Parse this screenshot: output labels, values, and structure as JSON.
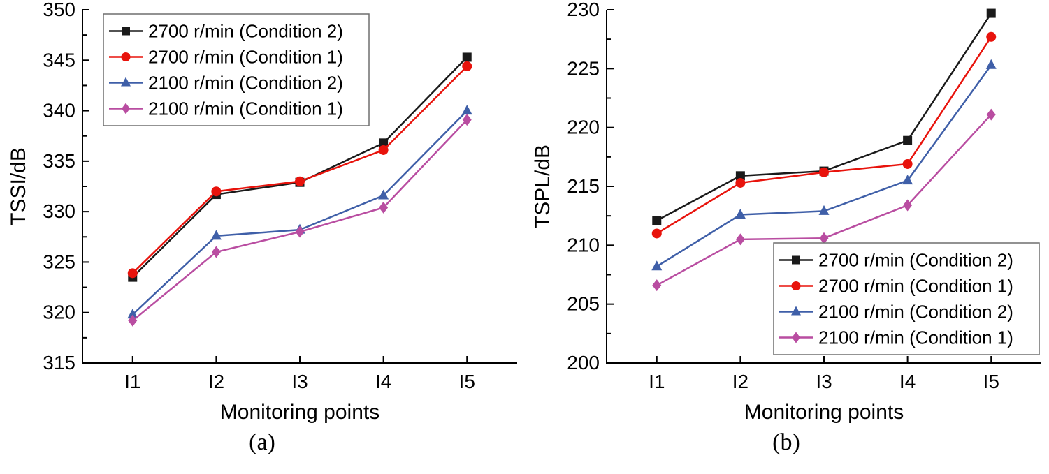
{
  "figure": {
    "background": "#ffffff",
    "text_color": "#000000"
  },
  "chart_data": [
    {
      "type": "line",
      "caption": "(a)",
      "title": "",
      "xlabel": "Monitoring points",
      "ylabel": "TSSI/dB",
      "categories": [
        "I1",
        "I2",
        "I3",
        "I4",
        "I5"
      ],
      "ylim": [
        315,
        350
      ],
      "ytick_step": 5,
      "grid": false,
      "legend_position": "top-left",
      "series": [
        {
          "name": "2700 r/min (Condition 2)",
          "marker": "square",
          "color": "#1a1a1a",
          "values": [
            323.5,
            331.7,
            332.9,
            336.8,
            345.3
          ]
        },
        {
          "name": "2700 r/min (Condition 1)",
          "marker": "circle",
          "color": "#e8130c",
          "values": [
            323.9,
            332.0,
            333.0,
            336.1,
            344.4
          ]
        },
        {
          "name": "2100 r/min (Condition 2)",
          "marker": "triangle",
          "color": "#3f5fa8",
          "values": [
            319.8,
            327.6,
            328.2,
            331.6,
            340.0
          ]
        },
        {
          "name": "2100 r/min (Condition 1)",
          "marker": "diamond",
          "color": "#b94da1",
          "values": [
            319.2,
            326.0,
            328.0,
            330.4,
            339.1
          ]
        }
      ]
    },
    {
      "type": "line",
      "caption": "(b)",
      "title": "",
      "xlabel": "Monitoring points",
      "ylabel": "TSPL/dB",
      "categories": [
        "I1",
        "I2",
        "I3",
        "I4",
        "I5"
      ],
      "ylim": [
        200,
        230
      ],
      "ytick_step": 5,
      "grid": false,
      "legend_position": "bottom-right",
      "series": [
        {
          "name": "2700 r/min (Condition 2)",
          "marker": "square",
          "color": "#1a1a1a",
          "values": [
            212.1,
            215.9,
            216.3,
            218.9,
            229.7
          ]
        },
        {
          "name": "2700 r/min (Condition 1)",
          "marker": "circle",
          "color": "#e8130c",
          "values": [
            211.0,
            215.3,
            216.2,
            216.9,
            227.7
          ]
        },
        {
          "name": "2100 r/min (Condition 2)",
          "marker": "triangle",
          "color": "#3f5fa8",
          "values": [
            208.2,
            212.6,
            212.9,
            215.5,
            225.3
          ]
        },
        {
          "name": "2100 r/min (Condition 1)",
          "marker": "diamond",
          "color": "#b94da1",
          "values": [
            206.6,
            210.5,
            210.6,
            213.4,
            221.1
          ]
        }
      ]
    }
  ]
}
